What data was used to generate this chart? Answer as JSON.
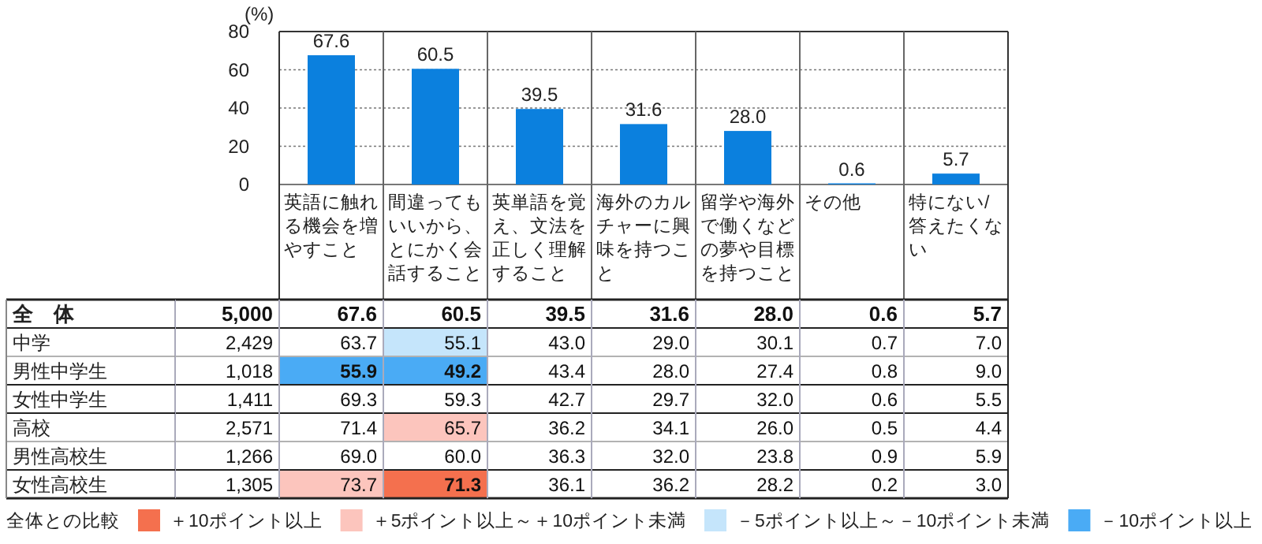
{
  "chart_data": [
    {
      "type": "bar",
      "ylabel": "(%)",
      "categories": [
        "英語に触れる機会を増やすこと",
        "間違ってもいいから、とにかく会話すること",
        "英単語を覚え、文法を正しく理解すること",
        "海外のカルチャーに興味を持つこと",
        "留学や海外で働くなどの夢や目標を持つこと",
        "その他",
        "特にない/答えたくない"
      ],
      "values": [
        67.6,
        60.5,
        39.5,
        31.6,
        28.0,
        0.6,
        5.7
      ],
      "data_labels": true,
      "value_labels": [
        "67.6",
        "60.5",
        "39.5",
        "31.6",
        "28.0",
        "0.6",
        "5.7"
      ],
      "color": "#0b80de",
      "ylim": [
        0,
        80
      ],
      "yticks": [
        0,
        20,
        40,
        60,
        80
      ],
      "grid": "y"
    },
    {
      "type": "heatmap",
      "categories": [
        null,
        null,
        null,
        null,
        null,
        null,
        null,
        null
      ],
      "y_categories": [
        "全　体",
        "中学",
        "男性中学生",
        "女性中学生",
        "高校",
        "男性高校生",
        "女性高校生"
      ],
      "cells": [
        [
          5000,
          67.6,
          60.5,
          39.5,
          31.6,
          28.0,
          0.6,
          5.7
        ],
        [
          2429,
          63.7,
          55.1,
          43.0,
          29.0,
          30.1,
          0.7,
          7.0
        ],
        [
          1018,
          55.9,
          49.2,
          43.4,
          28.0,
          27.4,
          0.8,
          9.0
        ],
        [
          1411,
          69.3,
          59.3,
          42.7,
          29.7,
          32.0,
          0.6,
          5.5
        ],
        [
          2571,
          71.4,
          65.7,
          36.2,
          34.1,
          26.0,
          0.5,
          4.4
        ],
        [
          1266,
          69.0,
          60.0,
          36.3,
          32.0,
          23.8,
          0.9,
          5.9
        ],
        [
          1305,
          73.7,
          71.3,
          36.1,
          36.2,
          28.2,
          0.2,
          3.0
        ]
      ],
      "cell_labels": [
        [
          "5,000",
          "67.6",
          "60.5",
          "39.5",
          "31.6",
          "28.0",
          "0.6",
          "5.7"
        ],
        [
          "2,429",
          "63.7",
          "55.1",
          "43.0",
          "29.0",
          "30.1",
          "0.7",
          "7.0"
        ],
        [
          "1,018",
          "55.9",
          "49.2",
          "43.4",
          "28.0",
          "27.4",
          "0.8",
          "9.0"
        ],
        [
          "1,411",
          "69.3",
          "59.3",
          "42.7",
          "29.7",
          "32.0",
          "0.6",
          "5.5"
        ],
        [
          "2,571",
          "71.4",
          "65.7",
          "36.2",
          "34.1",
          "26.0",
          "0.5",
          "4.4"
        ],
        [
          "1,266",
          "69.0",
          "60.0",
          "36.3",
          "32.0",
          "23.8",
          "0.9",
          "5.9"
        ],
        [
          "1,305",
          "73.7",
          "71.3",
          "36.1",
          "36.2",
          "28.2",
          "0.2",
          "3.0"
        ]
      ],
      "annotations": [
        "全体との比較",
        "＋10ポイント以上",
        "＋5ポイント以上～＋10ポイント未満",
        "－5ポイント以上～－10ポイント未満",
        "－10ポイント以上"
      ]
    }
  ]
}
